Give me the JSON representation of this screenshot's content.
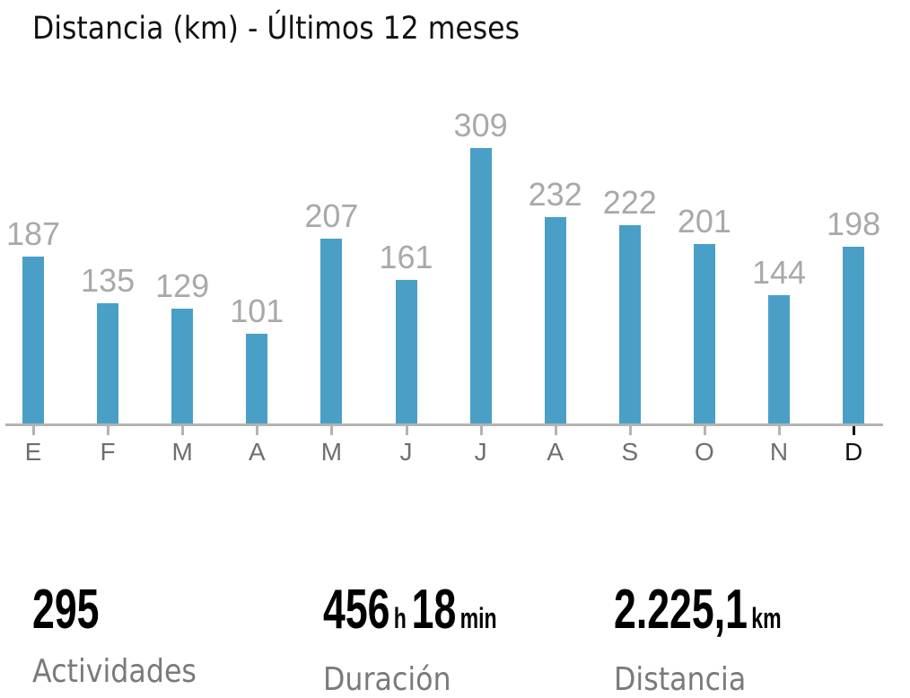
{
  "title": "Distancia (km) - Últimos 12 meses",
  "colors": {
    "bar": "#4a9fc6",
    "bar_label": "#a9a9a9",
    "axis": "#b3b3b3",
    "month_label": "#6f6f6f",
    "active_month": "#111111"
  },
  "chart_data": {
    "type": "bar",
    "title": "Distancia (km) - Últimos 12 meses",
    "xlabel": "",
    "ylabel": "Distancia (km)",
    "categories": [
      "E",
      "F",
      "M",
      "A",
      "M",
      "J",
      "J",
      "A",
      "S",
      "O",
      "N",
      "D"
    ],
    "values": [
      187,
      135,
      129,
      101,
      207,
      161,
      309,
      232,
      222,
      201,
      144,
      198
    ],
    "value_labels": [
      "187",
      "135",
      "129",
      "101",
      "207",
      "161",
      "309",
      "232",
      "222",
      "201",
      "144",
      "198"
    ],
    "ylim": [
      0,
      309
    ],
    "grid": false,
    "legend": null,
    "highlighted_category_index": 11
  },
  "stats": [
    {
      "value_parts": [
        {
          "num": "295",
          "unit": ""
        }
      ],
      "label": "Actividades"
    },
    {
      "value_parts": [
        {
          "num": "456",
          "unit": "h"
        },
        {
          "num": "18",
          "unit": "min"
        }
      ],
      "label": "Duración"
    },
    {
      "value_parts": [
        {
          "num": "2.225,1",
          "unit": "km"
        }
      ],
      "label": "Distancia"
    }
  ]
}
